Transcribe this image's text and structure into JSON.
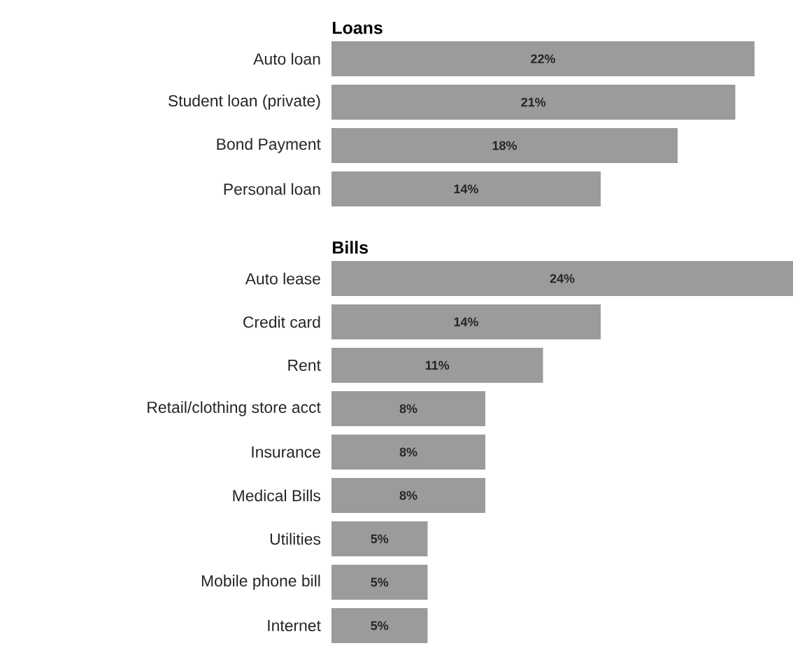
{
  "chart_data": [
    {
      "type": "bar",
      "orientation": "horizontal",
      "title": "Loans",
      "categories": [
        "Auto loan",
        "Student loan (private)",
        "Bond Payment",
        "Personal loan"
      ],
      "values": [
        22,
        21,
        18,
        14
      ],
      "value_labels": [
        "22%",
        "21%",
        "18%",
        "14%"
      ],
      "color": "#9b9b9b"
    },
    {
      "type": "bar",
      "orientation": "horizontal",
      "title": "Bills",
      "categories": [
        "Auto lease",
        "Credit card",
        "Rent",
        "Retail/clothing store acct",
        "Insurance",
        "Medical Bills",
        "Utilities",
        "Mobile phone bill",
        "Internet"
      ],
      "values": [
        24,
        14,
        11,
        8,
        8,
        8,
        5,
        5,
        5
      ],
      "value_labels": [
        "24%",
        "14%",
        "11%",
        "8%",
        "8%",
        "8%",
        "5%",
        "5%",
        "5%"
      ],
      "color": "#9b9b9b"
    }
  ]
}
